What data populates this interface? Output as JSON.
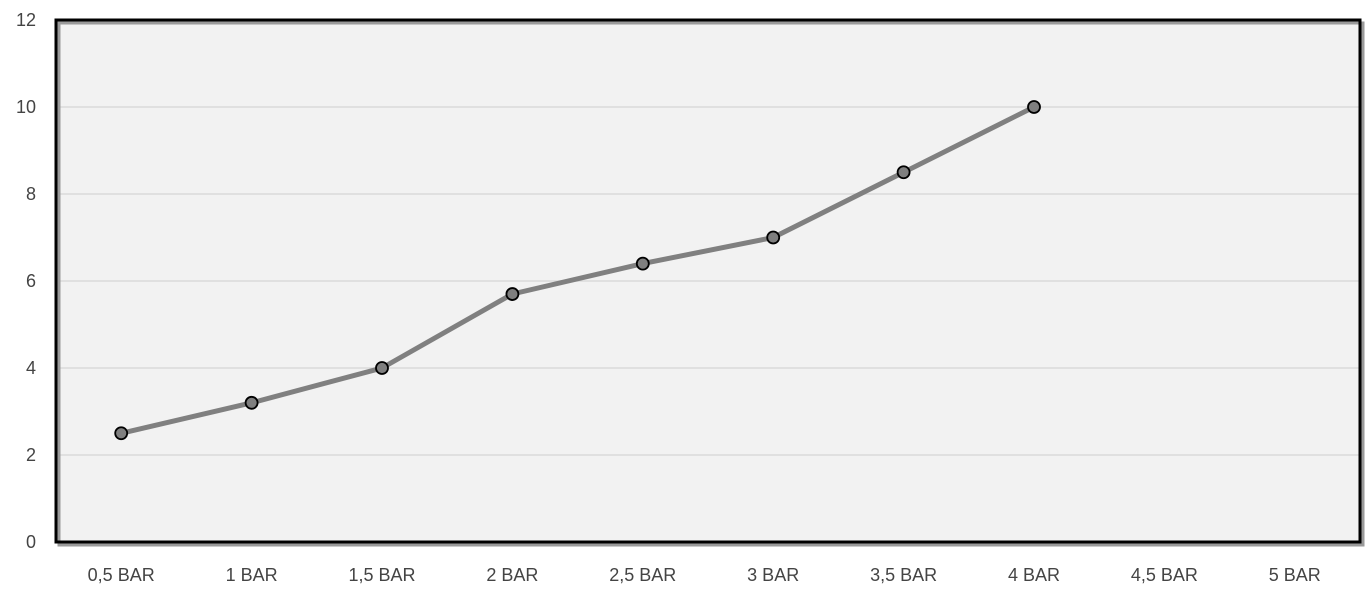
{
  "chart_data": {
    "type": "line",
    "title": "",
    "xlabel": "",
    "ylabel": "",
    "categories": [
      "0,5 BAR",
      "1 BAR",
      "1,5 BAR",
      "2 BAR",
      "2,5 BAR",
      "3 BAR",
      "3,5 BAR",
      "4 BAR",
      "4,5 BAR",
      "5 BAR"
    ],
    "series": [
      {
        "values": [
          2.5,
          3.2,
          4.0,
          5.7,
          6.4,
          7.0,
          8.5,
          10.0,
          null,
          null
        ]
      }
    ],
    "ylim": [
      0,
      12
    ],
    "yticks": [
      0,
      2,
      4,
      6,
      8,
      10,
      12
    ],
    "grid": true,
    "legend": "none",
    "colors": {
      "line": "#808080",
      "marker_fill": "#7f7f7f",
      "marker_stroke": "#000000",
      "plot_background": "#f2f2f2",
      "gridline": "#d9d9d9",
      "frame": "#000000"
    }
  }
}
